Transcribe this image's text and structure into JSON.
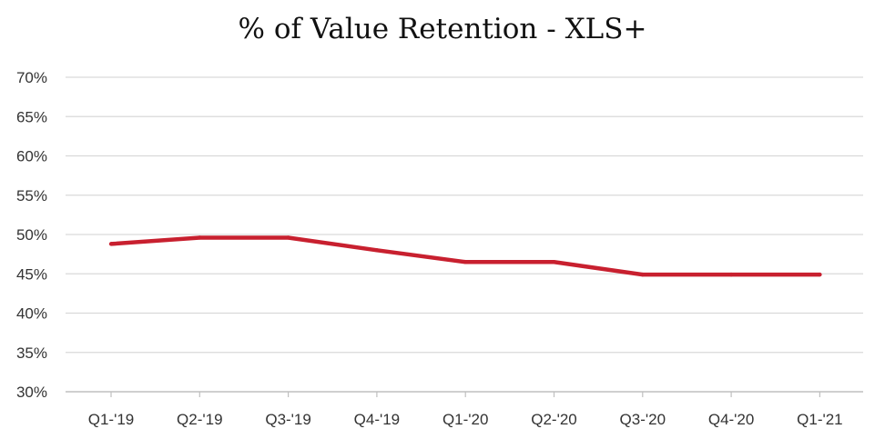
{
  "chart_data": {
    "type": "line",
    "title": "% of Value Retention - XLS+",
    "xlabel": "",
    "ylabel": "",
    "categories": [
      "Q1-'19",
      "Q2-'19",
      "Q3-'19",
      "Q4-'19",
      "Q1-'20",
      "Q2-'20",
      "Q3-'20",
      "Q4-'20",
      "Q1-'21"
    ],
    "series": [
      {
        "values": [
          48.8,
          49.6,
          49.6,
          48.0,
          46.5,
          46.5,
          44.9,
          44.9,
          44.9
        ]
      }
    ],
    "ylim": [
      30,
      70
    ],
    "y_ticks": [
      30,
      35,
      40,
      45,
      50,
      55,
      60,
      65,
      70
    ],
    "y_tick_labels": [
      "30%",
      "35%",
      "40%",
      "45%",
      "50%",
      "55%",
      "60%",
      "65%",
      "70%"
    ],
    "grid": true,
    "legend": "none",
    "colors": {
      "line": "#c8202f",
      "grid": "#d9d9d9",
      "axis": "#bfbfbf"
    }
  }
}
